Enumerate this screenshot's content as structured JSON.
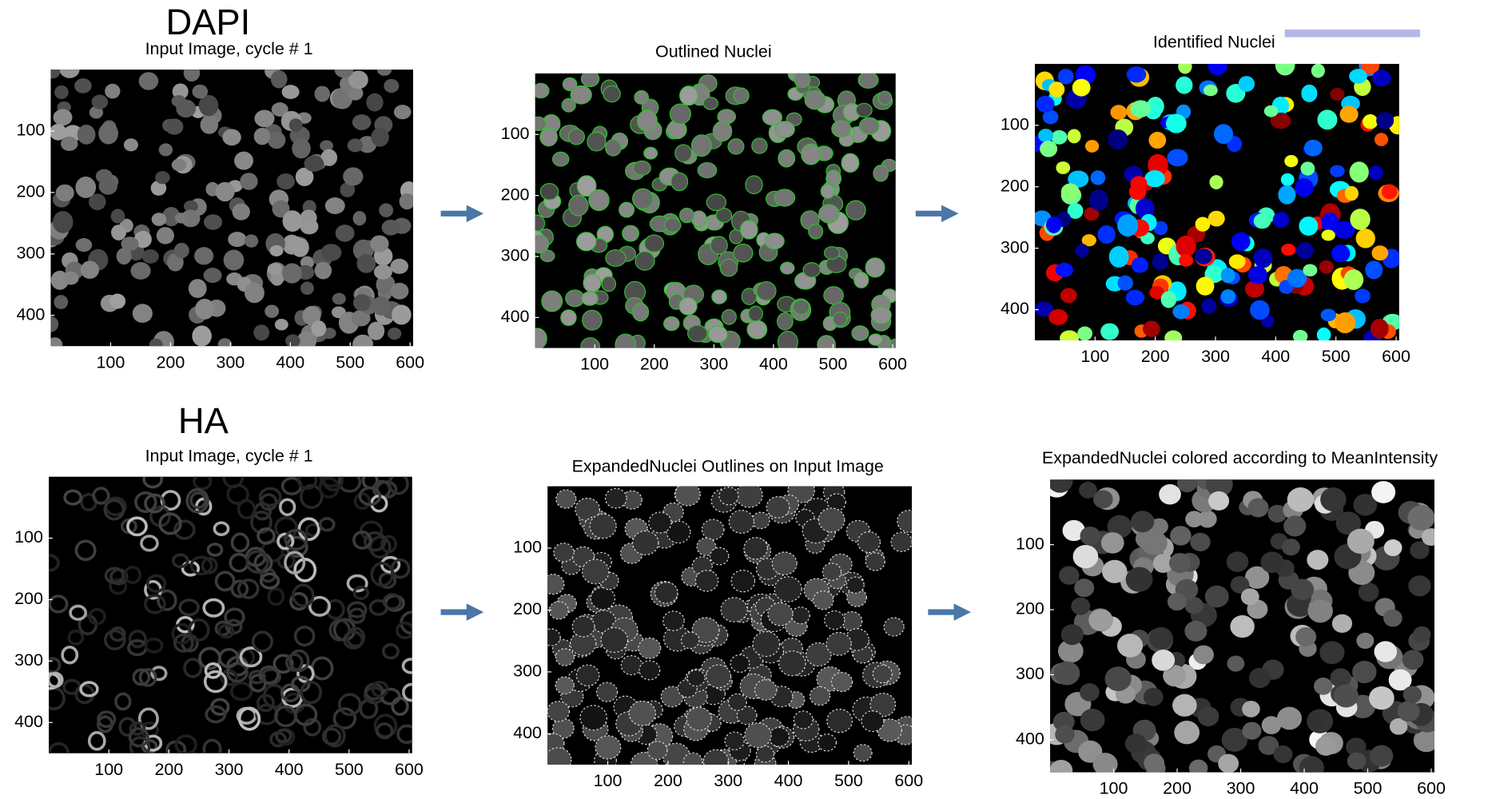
{
  "panels": [
    {
      "label": "DAPI",
      "title": "Input Image, cycle # 1",
      "xlim": [
        0,
        605
      ],
      "ylim": [
        0,
        450
      ],
      "xticks": [
        100,
        200,
        300,
        400,
        500,
        600
      ],
      "yticks": [
        100,
        200,
        300,
        400
      ]
    },
    {
      "title": "Outlined Nuclei",
      "xlim": [
        0,
        605
      ],
      "ylim": [
        0,
        450
      ],
      "xticks": [
        100,
        200,
        300,
        400,
        500,
        600
      ],
      "yticks": [
        100,
        200,
        300,
        400
      ]
    },
    {
      "title": "Identified Nuclei",
      "xlim": [
        0,
        605
      ],
      "ylim": [
        0,
        450
      ],
      "xticks": [
        100,
        200,
        300,
        400,
        500,
        600
      ],
      "yticks": [
        100,
        200,
        300,
        400
      ]
    },
    {
      "label": "HA",
      "title": "Input Image, cycle # 1",
      "xlim": [
        0,
        605
      ],
      "ylim": [
        0,
        450
      ],
      "xticks": [
        100,
        200,
        300,
        400,
        500,
        600
      ],
      "yticks": [
        100,
        200,
        300,
        400
      ]
    },
    {
      "title": "ExpandedNuclei Outlines on Input Image",
      "xlim": [
        0,
        605
      ],
      "ylim": [
        0,
        450
      ],
      "xticks": [
        100,
        200,
        300,
        400,
        500,
        600
      ],
      "yticks": [
        100,
        200,
        300,
        400
      ]
    },
    {
      "title": "ExpandedNuclei colored according to MeanIntensity",
      "xlim": [
        0,
        605
      ],
      "ylim": [
        0,
        450
      ],
      "xticks": [
        100,
        200,
        300,
        400,
        500,
        600
      ],
      "yticks": [
        100,
        200,
        300,
        400
      ]
    }
  ]
}
